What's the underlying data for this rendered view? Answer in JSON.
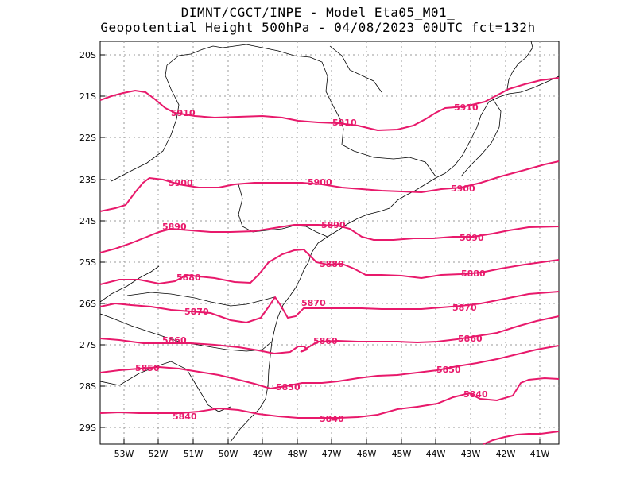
{
  "title": {
    "line1": "DIMNT/CGCT/INPE  -   Model Eta05_M01_",
    "line2": "Geopotential Height 500hPa  -   04/08/2023 00UTC fct=132h"
  },
  "colors": {
    "contour": "#e8196b",
    "border": "#000000",
    "grid": "#888888"
  },
  "axes": {
    "lat_labels": [
      "20S",
      "21S",
      "22S",
      "23S",
      "24S",
      "25S",
      "26S",
      "27S",
      "28S",
      "29S"
    ],
    "lon_labels": [
      "53W",
      "52W",
      "51W",
      "50W",
      "49W",
      "48W",
      "47W",
      "46W",
      "45W",
      "44W",
      "43W",
      "42W",
      "41W"
    ]
  },
  "contours": [
    {
      "value": "5910",
      "labels": [
        "5910",
        "5910",
        "5910"
      ]
    },
    {
      "value": "5900",
      "labels": [
        "5900",
        "5900",
        "5900"
      ]
    },
    {
      "value": "5890",
      "labels": [
        "5890",
        "5890",
        "5890"
      ]
    },
    {
      "value": "5880",
      "labels": [
        "5880",
        "5880",
        "5880"
      ]
    },
    {
      "value": "5870",
      "labels": [
        "5870",
        "5870",
        "5870"
      ]
    },
    {
      "value": "5860",
      "labels": [
        "5860",
        "5860",
        "5860"
      ]
    },
    {
      "value": "5850",
      "labels": [
        "5850",
        "5850",
        "5850"
      ]
    },
    {
      "value": "5840",
      "labels": [
        "5840",
        "5840",
        "5840"
      ]
    }
  ]
}
